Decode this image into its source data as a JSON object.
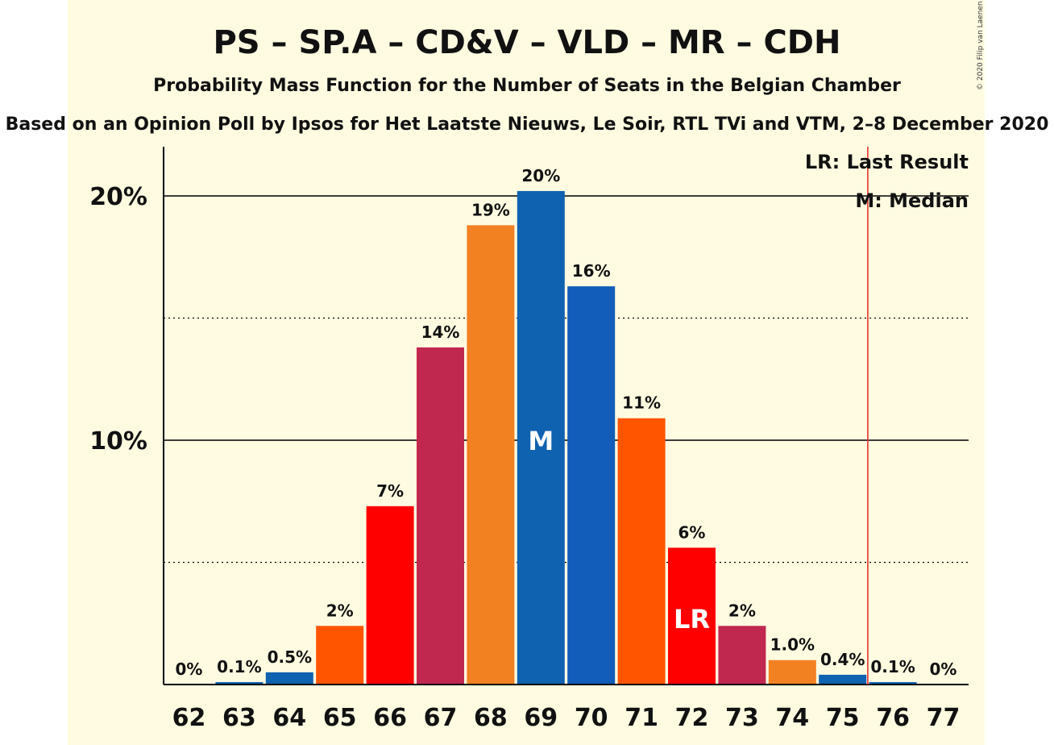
{
  "colors": {
    "background": "#FFFBE1",
    "outer_background": "#FFFFFF",
    "last_result_line": "#E8312A",
    "axis": "#000000"
  },
  "chart_data": {
    "type": "bar",
    "title": "PS – SP.A – CD&V – VLD – MR – CDH",
    "subtitle": "Probability Mass Function for the Number of Seats in the Belgian Chamber",
    "source": "Based on an Opinion Poll by Ipsos for Het Laatste Nieuws, Le Soir, RTL TVi and VTM, 2–8 December 2020",
    "copyright": "© 2020 Filip van Laenen",
    "categories": [
      "62",
      "63",
      "64",
      "65",
      "66",
      "67",
      "68",
      "69",
      "70",
      "71",
      "72",
      "73",
      "74",
      "75",
      "76",
      "77"
    ],
    "values": [
      0,
      0.1,
      0.5,
      2.4,
      7.3,
      13.8,
      18.8,
      20.2,
      16.3,
      10.9,
      5.6,
      2.4,
      1.0,
      0.4,
      0.1,
      0
    ],
    "value_labels": [
      "0%",
      "0.1%",
      "0.5%",
      "2%",
      "7%",
      "14%",
      "19%",
      "20%",
      "16%",
      "11%",
      "6%",
      "2%",
      "1.0%",
      "0.4%",
      "0.1%",
      "0%"
    ],
    "bar_colors": [
      "#0F62B0",
      "#0F62B0",
      "#0F62B0",
      "#FF5500",
      "#FF0000",
      "#C0284F",
      "#F28122",
      "#0F62B0",
      "#115DB9",
      "#FF5500",
      "#FF0000",
      "#C0284F",
      "#F28122",
      "#0F62B0",
      "#0F62B0",
      "#0F62B0"
    ],
    "ylim": [
      0,
      22
    ],
    "yticks": [
      {
        "value": 10,
        "label": "10%"
      },
      {
        "value": 20,
        "label": "20%"
      }
    ],
    "dotted_gridlines": [
      5,
      15
    ],
    "median_seat": "69",
    "median_marker": "M",
    "last_result_seat": "72",
    "last_result_marker": "LR",
    "majority_line_x": 75.5,
    "legend": {
      "placement": "top-right",
      "last_result": "LR: Last Result",
      "median": "M: Median"
    },
    "xlabel": "",
    "ylabel": ""
  }
}
